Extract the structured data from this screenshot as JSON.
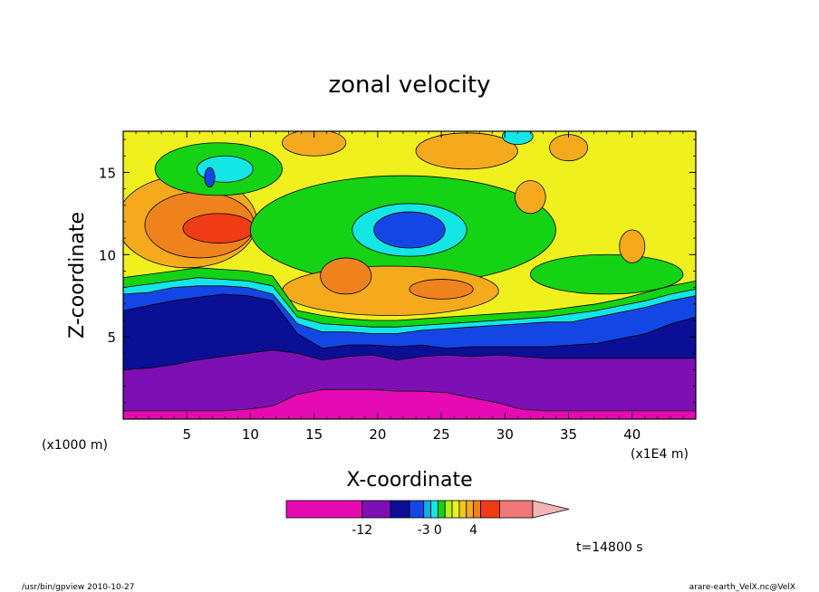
{
  "chart_data": {
    "type": "heatmap",
    "title": "zonal velocity",
    "xlabel": "X-coordinate",
    "ylabel": "Z-coordinate",
    "x_unit_left": "(x1000 m)",
    "x_unit_right": "(x1E4 m)",
    "xlim": [
      0,
      45
    ],
    "ylim": [
      0,
      17.5
    ],
    "xticks": [
      5,
      10,
      15,
      20,
      25,
      30,
      35,
      40
    ],
    "yticks": [
      5,
      10,
      15
    ],
    "grid": false,
    "colorbar": {
      "orientation": "horizontal",
      "placement": "bottom",
      "tick_labels": [
        "-12",
        "-3",
        "0",
        "4"
      ],
      "bands": [
        {
          "color": "#e60ab4",
          "weight": 3.2
        },
        {
          "color": "#7d0fb4",
          "weight": 1.2
        },
        {
          "color": "#0a0f96",
          "weight": 0.8
        },
        {
          "color": "#1446e6",
          "weight": 0.6
        },
        {
          "color": "#14aaf0",
          "weight": 0.3
        },
        {
          "color": "#14e6e6",
          "weight": 0.3
        },
        {
          "color": "#14d214",
          "weight": 0.3
        },
        {
          "color": "#b4f01e",
          "weight": 0.3
        },
        {
          "color": "#f0f01e",
          "weight": 0.3
        },
        {
          "color": "#f0c81e",
          "weight": 0.3
        },
        {
          "color": "#f5aa1e",
          "weight": 0.3
        },
        {
          "color": "#f0821e",
          "weight": 0.3
        },
        {
          "color": "#f03c14",
          "weight": 0.8
        },
        {
          "color": "#f07878",
          "weight": 1.4
        }
      ],
      "extend_color": "#f5b4b4"
    },
    "layers": [
      {
        "name": "lower-magenta",
        "color": "#e60ab4",
        "z_top": [
          0.5,
          0.5,
          0.5,
          0.5,
          0.5,
          0.6,
          0.8,
          1.5,
          1.8,
          1.8,
          1.8,
          1.7,
          1.7,
          1.6,
          1.3,
          1.0,
          0.6,
          0.5,
          0.5,
          0.5,
          0.5,
          0.5,
          0.5,
          0.5
        ]
      },
      {
        "name": "purple",
        "color": "#7d0fb4",
        "z_top": [
          3.0,
          3.1,
          3.3,
          3.6,
          3.8,
          4.0,
          4.2,
          4.0,
          3.6,
          3.8,
          3.9,
          3.6,
          3.8,
          3.9,
          3.8,
          3.9,
          3.8,
          3.7,
          3.7,
          3.7,
          3.7,
          3.7,
          3.7,
          3.7
        ]
      },
      {
        "name": "dark-blue",
        "color": "#0a0f96",
        "z_top": [
          6.6,
          6.9,
          7.2,
          7.4,
          7.6,
          7.5,
          7.2,
          5.2,
          4.3,
          4.5,
          4.5,
          4.4,
          4.5,
          4.3,
          4.4,
          4.4,
          4.4,
          4.4,
          4.5,
          4.6,
          4.9,
          5.2,
          5.8,
          6.2
        ]
      },
      {
        "name": "blue",
        "color": "#1446e6",
        "z_top": [
          7.6,
          7.7,
          8.0,
          8.1,
          8.1,
          8.0,
          7.6,
          5.8,
          5.3,
          5.3,
          5.2,
          5.2,
          5.4,
          5.5,
          5.6,
          5.7,
          5.8,
          5.9,
          5.9,
          6.2,
          6.5,
          6.8,
          7.2,
          7.5
        ]
      },
      {
        "name": "cyan",
        "color": "#14e6e6",
        "z_top": [
          8.0,
          8.2,
          8.4,
          8.6,
          8.5,
          8.4,
          8.1,
          6.2,
          5.8,
          5.7,
          5.6,
          5.6,
          5.7,
          5.8,
          5.9,
          6.0,
          6.1,
          6.2,
          6.4,
          6.6,
          6.9,
          7.2,
          7.6,
          7.9
        ]
      },
      {
        "name": "green",
        "color": "#14d214",
        "z_top": [
          8.6,
          8.8,
          9.0,
          9.2,
          9.1,
          9.0,
          8.7,
          6.6,
          6.3,
          6.1,
          6.0,
          6.0,
          6.1,
          6.2,
          6.3,
          6.4,
          6.5,
          6.6,
          6.8,
          7.0,
          7.3,
          7.7,
          8.1,
          8.4
        ]
      },
      {
        "name": "yellow",
        "color": "#f0f01e",
        "z_top": [
          17.5,
          17.5,
          17.5,
          17.5,
          17.5,
          17.5,
          17.5,
          17.5,
          17.5,
          17.5,
          17.5,
          17.5,
          17.5,
          17.5,
          17.5,
          17.5,
          17.5,
          17.5,
          17.5,
          17.5,
          17.5,
          17.5,
          17.5,
          17.5
        ]
      }
    ],
    "features": [
      {
        "name": "upper-orange",
        "color": "#f5aa1e",
        "x": 5.0,
        "z": 12.0,
        "rx": 5.5,
        "rz": 2.8
      },
      {
        "name": "orange-core",
        "color": "#f0821e",
        "x": 6.0,
        "z": 11.8,
        "rx": 4.3,
        "rz": 2.0
      },
      {
        "name": "red-core",
        "color": "#f03c14",
        "x": 7.5,
        "z": 11.6,
        "rx": 2.8,
        "rz": 0.9
      },
      {
        "name": "green-plume",
        "color": "#14d214",
        "x": 22.0,
        "z": 11.5,
        "rx": 12.0,
        "rz": 3.3
      },
      {
        "name": "green-upper-left",
        "color": "#14d214",
        "x": 7.5,
        "z": 15.2,
        "rx": 5.0,
        "rz": 1.6
      },
      {
        "name": "cyan-upper-left",
        "color": "#14e6e6",
        "x": 8.0,
        "z": 15.2,
        "rx": 2.2,
        "rz": 0.8
      },
      {
        "name": "blue-dot",
        "color": "#1446e6",
        "x": 6.8,
        "z": 14.7,
        "rx": 0.4,
        "rz": 0.6
      },
      {
        "name": "cyan-mid",
        "color": "#14e6e6",
        "x": 22.5,
        "z": 11.5,
        "rx": 4.5,
        "rz": 1.6
      },
      {
        "name": "blue-mid",
        "color": "#1446e6",
        "x": 22.5,
        "z": 11.5,
        "rx": 2.8,
        "rz": 1.1
      },
      {
        "name": "green-right",
        "color": "#14d214",
        "x": 38.0,
        "z": 8.8,
        "rx": 6.0,
        "rz": 1.2
      },
      {
        "name": "orange-mid",
        "color": "#f5aa1e",
        "x": 21.0,
        "z": 7.8,
        "rx": 8.5,
        "rz": 1.5
      },
      {
        "name": "orange-mid2",
        "color": "#f0821e",
        "x": 17.5,
        "z": 8.7,
        "rx": 2.0,
        "rz": 1.1
      },
      {
        "name": "orange-mid3",
        "color": "#f0821e",
        "x": 25.0,
        "z": 7.9,
        "rx": 2.5,
        "rz": 0.6
      },
      {
        "name": "orange-top-a",
        "color": "#f5aa1e",
        "x": 15.0,
        "z": 16.8,
        "rx": 2.5,
        "rz": 0.8
      },
      {
        "name": "orange-top-b",
        "color": "#f5aa1e",
        "x": 27.0,
        "z": 16.3,
        "rx": 4.0,
        "rz": 1.1
      },
      {
        "name": "orange-top-c",
        "color": "#f5aa1e",
        "x": 32.0,
        "z": 13.5,
        "rx": 1.2,
        "rz": 1.0
      },
      {
        "name": "orange-top-d",
        "color": "#f5aa1e",
        "x": 35.0,
        "z": 16.5,
        "rx": 1.5,
        "rz": 0.8
      },
      {
        "name": "orange-right",
        "color": "#f5aa1e",
        "x": 40.0,
        "z": 10.5,
        "rx": 1.0,
        "rz": 1.0
      },
      {
        "name": "cyan-top",
        "color": "#14e6e6",
        "x": 31.0,
        "z": 17.2,
        "rx": 1.2,
        "rz": 0.5
      }
    ]
  },
  "timestamp_label": "t=14800 s",
  "footer": {
    "left": "/usr/bin/gpview   2010-10-27",
    "right": "arare-earth_VelX.nc@VelX"
  }
}
